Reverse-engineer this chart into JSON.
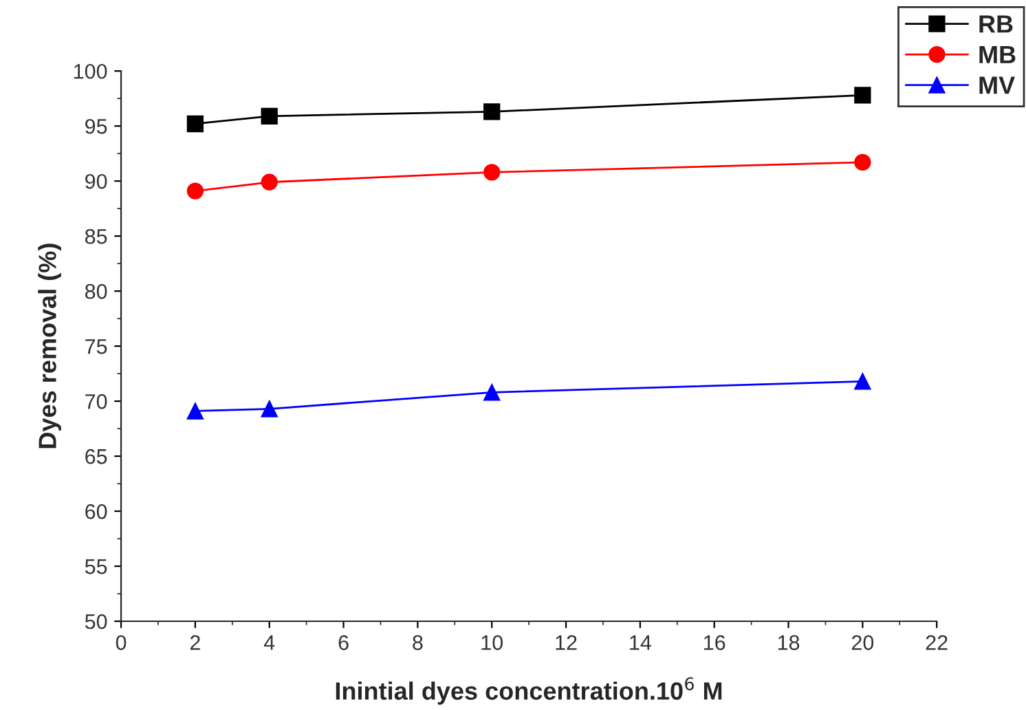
{
  "chart_data": {
    "type": "line",
    "xlabel": "Inintial dyes concentration.10$^{6}$ M",
    "ylabel": "Dyes removal (%)",
    "x": [
      2,
      4,
      10,
      20
    ],
    "series": [
      {
        "name": "RB",
        "color": "#000000",
        "marker": "square",
        "values": [
          95.2,
          95.9,
          96.3,
          97.8
        ]
      },
      {
        "name": "MB",
        "color": "#ff0000",
        "marker": "circle",
        "values": [
          89.1,
          89.9,
          90.8,
          91.7
        ]
      },
      {
        "name": "MV",
        "color": "#0000ff",
        "marker": "triangle",
        "values": [
          69.1,
          69.3,
          70.8,
          71.8
        ]
      }
    ],
    "xlim": [
      0,
      22
    ],
    "xticks": [
      0,
      2,
      4,
      6,
      8,
      10,
      12,
      14,
      16,
      18,
      20,
      22
    ],
    "ylim": [
      50,
      100
    ],
    "yticks": [
      50,
      55,
      60,
      65,
      70,
      75,
      80,
      85,
      90,
      95,
      100
    ],
    "grid": false,
    "legend": "top right",
    "line_style": "solid"
  }
}
